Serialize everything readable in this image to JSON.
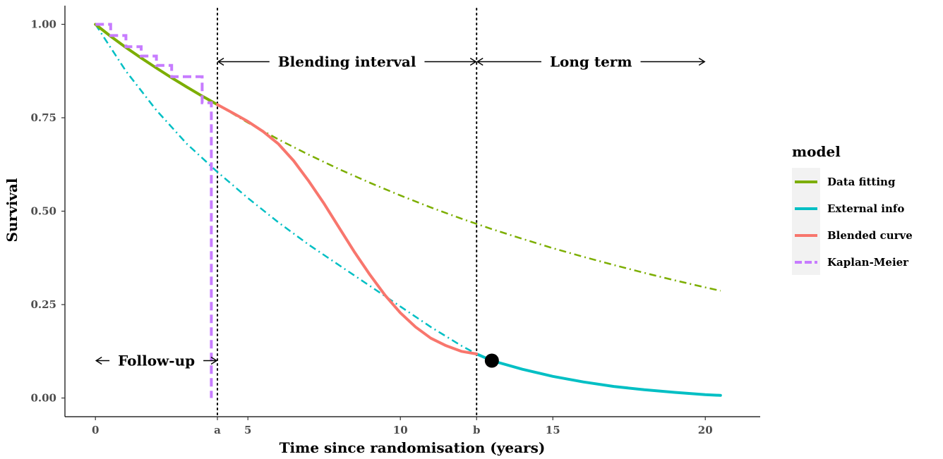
{
  "chart_data": {
    "type": "line",
    "xlabel": "Time since randomisation (years)",
    "ylabel": "Survival",
    "xlim": [
      -1,
      21.8
    ],
    "ylim": [
      -0.05,
      1.05
    ],
    "x_ticks": [
      {
        "value": 0,
        "label": "0"
      },
      {
        "value": 4,
        "label": "a"
      },
      {
        "value": 5,
        "label": "5"
      },
      {
        "value": 10,
        "label": "10"
      },
      {
        "value": 12.5,
        "label": "b"
      },
      {
        "value": 15,
        "label": "15"
      },
      {
        "value": 20,
        "label": "20"
      }
    ],
    "y_ticks": [
      {
        "value": 0,
        "label": "0.00"
      },
      {
        "value": 0.25,
        "label": "0.25"
      },
      {
        "value": 0.5,
        "label": "0.50"
      },
      {
        "value": 0.75,
        "label": "0.75"
      },
      {
        "value": 1,
        "label": "1.00"
      }
    ],
    "grid": false,
    "legend": {
      "title": "model",
      "placement": "right",
      "entries": [
        {
          "label": "Data fitting",
          "color": "#7CAE00"
        },
        {
          "label": "External info",
          "color": "#00BFC4"
        },
        {
          "label": "Blended curve",
          "color": "#F8766D"
        },
        {
          "label": "Kaplan-Meier",
          "color": "#C77CFF"
        }
      ]
    },
    "vlines": [
      {
        "x": 4,
        "label": "a"
      },
      {
        "x": 12.5,
        "label": "b"
      }
    ],
    "annotations": [
      {
        "text": "Follow-up",
        "x_from": 0,
        "x_to": 4,
        "y": 0.1
      },
      {
        "text": "Blending interval",
        "x_from": 4,
        "x_to": 12.5,
        "y": 0.9
      },
      {
        "text": "Long term",
        "x_from": 12.5,
        "x_to": 20,
        "y": 0.9
      }
    ],
    "marker": {
      "x": 13,
      "y": 0.1
    },
    "series": [
      {
        "model": "Data fitting",
        "color": "#7CAE00",
        "solid": {
          "x": [
            0,
            0.5,
            1,
            1.5,
            2,
            2.5,
            3,
            3.5,
            4
          ],
          "y": [
            1.0,
            0.968,
            0.938,
            0.91,
            0.883,
            0.857,
            0.832,
            0.808,
            0.785
          ]
        },
        "dashdot": {
          "x": [
            4,
            5,
            6,
            7,
            8,
            9,
            10,
            11,
            12,
            13,
            14,
            15,
            16,
            17,
            18,
            19,
            20,
            20.5
          ],
          "y": [
            0.785,
            0.737,
            0.692,
            0.651,
            0.612,
            0.576,
            0.542,
            0.51,
            0.48,
            0.452,
            0.426,
            0.401,
            0.378,
            0.356,
            0.335,
            0.315,
            0.296,
            0.287
          ]
        }
      },
      {
        "model": "External info",
        "color": "#00BFC4",
        "dashdot": {
          "x": [
            0,
            1,
            2,
            3,
            4,
            5,
            6,
            7,
            8,
            9,
            10,
            11,
            12,
            12.5
          ],
          "y": [
            1.0,
            0.875,
            0.77,
            0.68,
            0.605,
            0.535,
            0.47,
            0.41,
            0.355,
            0.3,
            0.245,
            0.19,
            0.14,
            0.118
          ]
        },
        "solid": {
          "x": [
            12.5,
            13,
            14,
            15,
            16,
            17,
            18,
            19,
            20,
            20.5
          ],
          "y": [
            0.118,
            0.1,
            0.077,
            0.058,
            0.043,
            0.031,
            0.022,
            0.015,
            0.009,
            0.007
          ]
        }
      },
      {
        "model": "Blended curve",
        "color": "#F8766D",
        "solid": {
          "x": [
            4,
            4.5,
            5,
            5.5,
            6,
            6.5,
            7,
            7.5,
            8,
            8.5,
            9,
            9.5,
            10,
            10.5,
            11,
            11.5,
            12,
            12.5
          ],
          "y": [
            0.785,
            0.763,
            0.74,
            0.713,
            0.68,
            0.635,
            0.58,
            0.52,
            0.455,
            0.39,
            0.33,
            0.275,
            0.228,
            0.19,
            0.16,
            0.14,
            0.125,
            0.118
          ]
        }
      },
      {
        "model": "Kaplan-Meier",
        "color": "#C77CFF",
        "step": {
          "x": [
            0,
            0.5,
            1,
            1.5,
            2,
            2.5,
            3,
            3.5,
            3.8,
            3.8
          ],
          "y": [
            1.0,
            0.97,
            0.94,
            0.915,
            0.89,
            0.86,
            0.86,
            0.79,
            0.79,
            0.0
          ]
        }
      }
    ]
  }
}
